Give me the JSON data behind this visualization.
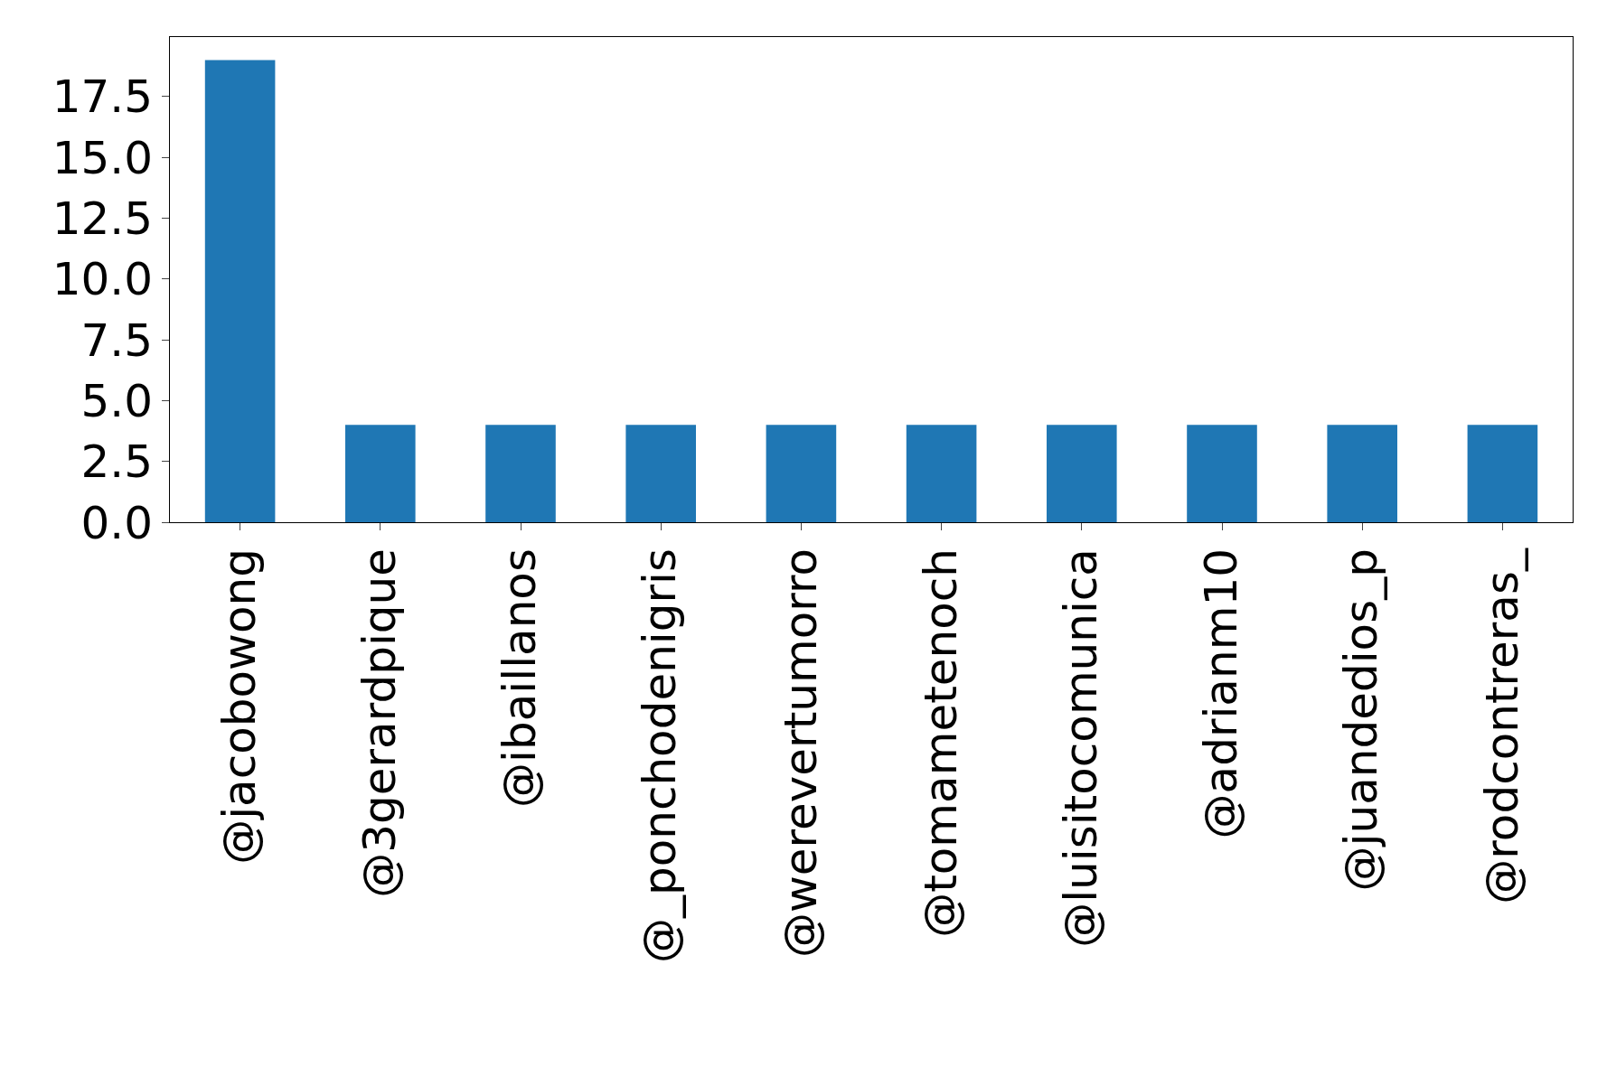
{
  "chart_data": {
    "type": "bar",
    "categories": [
      "@jacobowong",
      "@3gerardpique",
      "@ibaillanos",
      "@_ponchodenigris",
      "@werevertumorro",
      "@tomametenoch",
      "@luisitocomunica",
      "@adrianm10",
      "@juandedios_p",
      "@rodcontreras_"
    ],
    "values": [
      19,
      4,
      4,
      4,
      4,
      4,
      4,
      4,
      4,
      4
    ],
    "color": "#1f77b4",
    "ylim": [
      0,
      19.95
    ],
    "yticks": [
      {
        "value": 0,
        "label": "0.0"
      },
      {
        "value": 2.5,
        "label": "2.5"
      },
      {
        "value": 5,
        "label": "5.0"
      },
      {
        "value": 7.5,
        "label": "7.5"
      },
      {
        "value": 10,
        "label": "10.0"
      },
      {
        "value": 12.5,
        "label": "12.5"
      },
      {
        "value": 15,
        "label": "15.0"
      },
      {
        "value": 17.5,
        "label": "17.5"
      }
    ],
    "grid": false,
    "legend": false
  }
}
